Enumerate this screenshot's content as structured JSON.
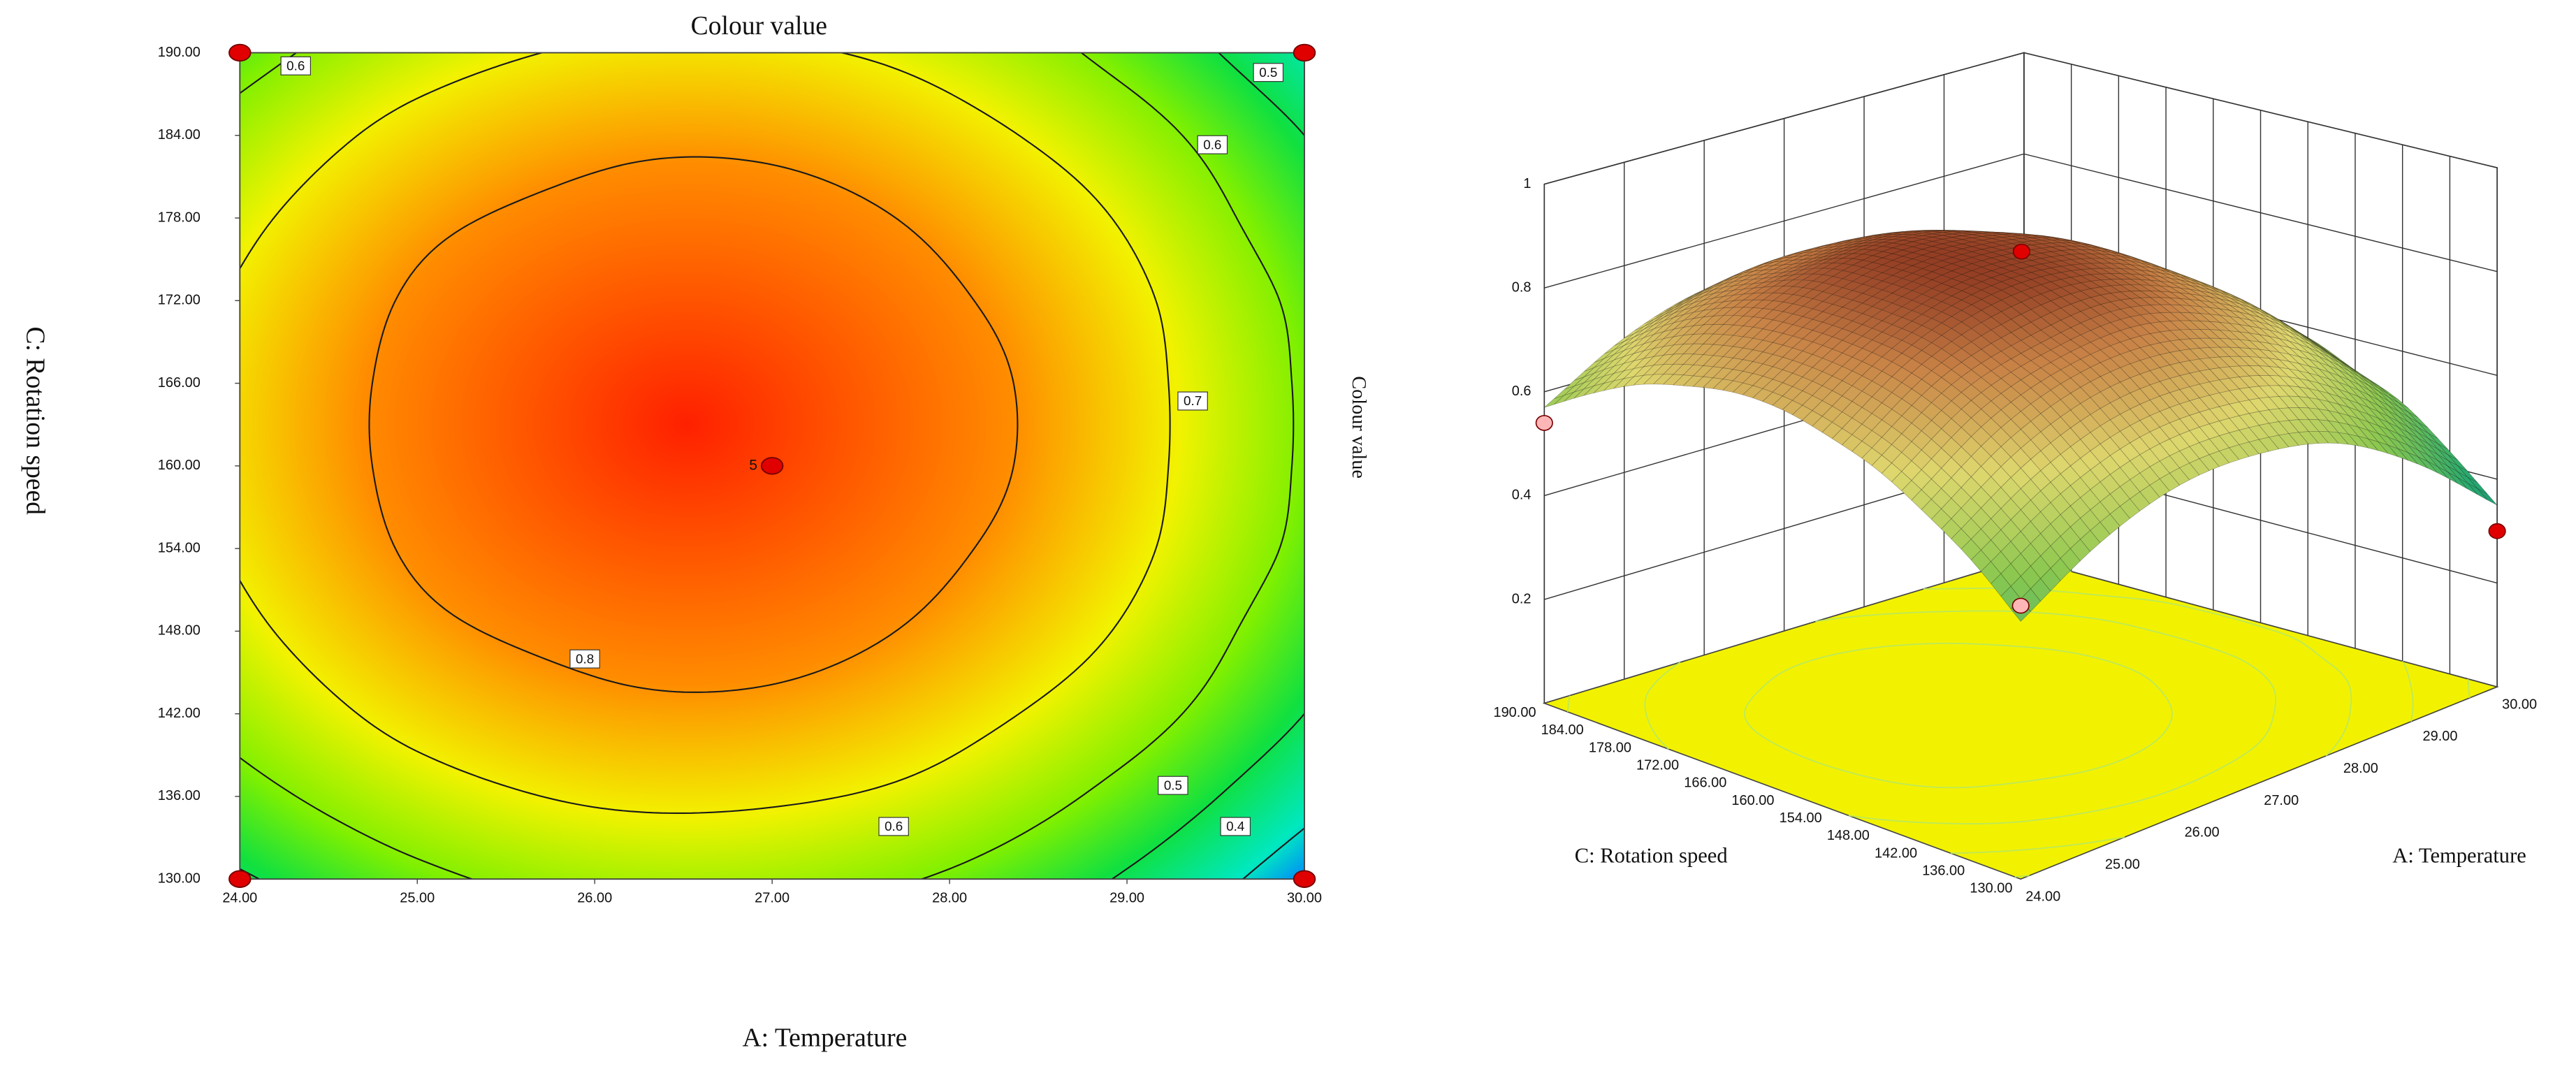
{
  "chart_data": [
    {
      "type": "contour",
      "title": "Colour value",
      "xlabel": "A: Temperature",
      "ylabel": "C: Rotation speed",
      "xlim": [
        24,
        30
      ],
      "xticks": [
        {
          "value": 24,
          "label": "24.00"
        },
        {
          "value": 25,
          "label": "25.00"
        },
        {
          "value": 26,
          "label": "26.00"
        },
        {
          "value": 27,
          "label": "27.00"
        },
        {
          "value": 28,
          "label": "28.00"
        },
        {
          "value": 29,
          "label": "29.00"
        },
        {
          "value": 30,
          "label": "30.00"
        }
      ],
      "ylim": [
        130,
        190
      ],
      "yticks": [
        {
          "value": 130,
          "label": "130.00"
        },
        {
          "value": 136,
          "label": "136.00"
        },
        {
          "value": 142,
          "label": "142.00"
        },
        {
          "value": 148,
          "label": "148.00"
        },
        {
          "value": 154,
          "label": "154.00"
        },
        {
          "value": 160,
          "label": "160.00"
        },
        {
          "value": 166,
          "label": "166.00"
        },
        {
          "value": 172,
          "label": "172.00"
        },
        {
          "value": 178,
          "label": "178.00"
        },
        {
          "value": 184,
          "label": "184.00"
        },
        {
          "value": 190,
          "label": "190.00"
        }
      ],
      "z": [
        [
          0.49,
          0.58,
          0.63,
          0.63,
          0.59,
          0.49,
          0.35
        ],
        [
          0.57,
          0.66,
          0.71,
          0.71,
          0.67,
          0.57,
          0.43
        ],
        [
          0.63,
          0.73,
          0.78,
          0.78,
          0.73,
          0.64,
          0.5
        ],
        [
          0.68,
          0.78,
          0.82,
          0.83,
          0.78,
          0.69,
          0.54
        ],
        [
          0.71,
          0.81,
          0.86,
          0.86,
          0.81,
          0.72,
          0.58
        ],
        [
          0.73,
          0.82,
          0.87,
          0.87,
          0.83,
          0.73,
          0.59
        ],
        [
          0.73,
          0.82,
          0.87,
          0.87,
          0.83,
          0.73,
          0.59
        ],
        [
          0.71,
          0.81,
          0.86,
          0.86,
          0.81,
          0.72,
          0.58
        ],
        [
          0.68,
          0.78,
          0.82,
          0.83,
          0.78,
          0.69,
          0.54
        ],
        [
          0.63,
          0.73,
          0.78,
          0.78,
          0.73,
          0.64,
          0.5
        ],
        [
          0.57,
          0.66,
          0.71,
          0.71,
          0.67,
          0.57,
          0.43
        ]
      ],
      "levels": [
        0.4,
        0.5,
        0.6,
        0.7,
        0.8
      ],
      "points": {
        "x": [
          24,
          30,
          24,
          30,
          27
        ],
        "y": [
          190,
          190,
          130,
          130,
          160
        ]
      },
      "point_color": "#e00000",
      "annotation": "5"
    },
    {
      "type": "surface",
      "xlabel": "A: Temperature",
      "ylabel": "C: Rotation speed",
      "zlabel": "Colour value",
      "xlim": [
        24,
        30
      ],
      "xticks": [
        {
          "value": 24,
          "label": "24.00"
        },
        {
          "value": 25,
          "label": "25.00"
        },
        {
          "value": 26,
          "label": "26.00"
        },
        {
          "value": 27,
          "label": "27.00"
        },
        {
          "value": 28,
          "label": "28.00"
        },
        {
          "value": 29,
          "label": "29.00"
        },
        {
          "value": 30,
          "label": "30.00"
        }
      ],
      "ylim": [
        130,
        190
      ],
      "yticks": [
        {
          "value": 130,
          "label": "130.00"
        },
        {
          "value": 136,
          "label": "136.00"
        },
        {
          "value": 142,
          "label": "142.00"
        },
        {
          "value": 148,
          "label": "148.00"
        },
        {
          "value": 154,
          "label": "154.00"
        },
        {
          "value": 160,
          "label": "160.00"
        },
        {
          "value": 166,
          "label": "166.00"
        },
        {
          "value": 172,
          "label": "172.00"
        },
        {
          "value": 178,
          "label": "178.00"
        },
        {
          "value": 184,
          "label": "184.00"
        },
        {
          "value": 190,
          "label": "190.00"
        }
      ],
      "zlim": [
        0,
        1
      ],
      "zticks": [
        0.2,
        0.4,
        0.6,
        0.8,
        1
      ],
      "z": [
        [
          0.49,
          0.58,
          0.63,
          0.63,
          0.59,
          0.49,
          0.35
        ],
        [
          0.57,
          0.66,
          0.71,
          0.71,
          0.67,
          0.57,
          0.43
        ],
        [
          0.63,
          0.73,
          0.78,
          0.78,
          0.73,
          0.64,
          0.5
        ],
        [
          0.68,
          0.78,
          0.82,
          0.83,
          0.78,
          0.69,
          0.54
        ],
        [
          0.71,
          0.81,
          0.86,
          0.86,
          0.81,
          0.72,
          0.58
        ],
        [
          0.73,
          0.82,
          0.87,
          0.87,
          0.83,
          0.73,
          0.59
        ],
        [
          0.73,
          0.82,
          0.87,
          0.87,
          0.83,
          0.73,
          0.59
        ],
        [
          0.71,
          0.81,
          0.86,
          0.86,
          0.81,
          0.72,
          0.58
        ],
        [
          0.68,
          0.78,
          0.82,
          0.83,
          0.78,
          0.69,
          0.54
        ],
        [
          0.63,
          0.73,
          0.78,
          0.78,
          0.73,
          0.64,
          0.5
        ],
        [
          0.57,
          0.66,
          0.71,
          0.71,
          0.67,
          0.57,
          0.43
        ]
      ],
      "points": {
        "x": [
          27,
          24,
          30,
          24
        ],
        "y": [
          160,
          190,
          130,
          130
        ],
        "z": [
          0.88,
          0.54,
          0.3,
          0.52
        ]
      },
      "point_colors": [
        "#e00000",
        "#ffb6b6",
        "#e00000",
        "#ffb6b6"
      ],
      "floor_color": "#f2f200"
    }
  ]
}
